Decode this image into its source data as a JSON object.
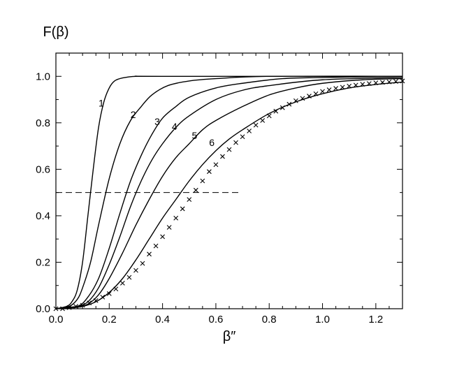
{
  "chart_data": {
    "type": "line",
    "title": "",
    "xlabel": "β″",
    "ylabel": "F(β)",
    "xlim": [
      0.0,
      1.3
    ],
    "ylim": [
      0.0,
      1.1
    ],
    "xticks": [
      "0.0",
      "0.2",
      "0.4",
      "0.6",
      "0.8",
      "1.0",
      "1.2"
    ],
    "yticks": [
      "0.0",
      "0.2",
      "0.4",
      "0.6",
      "0.8",
      "1.0"
    ],
    "grid": false,
    "series": [
      {
        "name": "1",
        "label_at": [
          0.17,
          0.87
        ],
        "x": [
          0.0,
          0.04,
          0.06,
          0.08,
          0.1,
          0.12,
          0.14,
          0.16,
          0.18,
          0.2,
          0.22,
          0.25,
          0.3,
          0.4,
          1.3
        ],
        "y": [
          0.0,
          0.01,
          0.03,
          0.08,
          0.2,
          0.4,
          0.6,
          0.78,
          0.89,
          0.95,
          0.98,
          0.993,
          1.0,
          1.0,
          1.0
        ]
      },
      {
        "name": "2",
        "label_at": [
          0.29,
          0.82
        ],
        "x": [
          0.0,
          0.05,
          0.08,
          0.1,
          0.13,
          0.16,
          0.2,
          0.24,
          0.28,
          0.32,
          0.36,
          0.42,
          0.5,
          0.6,
          0.8,
          1.3
        ],
        "y": [
          0.0,
          0.01,
          0.04,
          0.09,
          0.2,
          0.36,
          0.56,
          0.71,
          0.81,
          0.87,
          0.92,
          0.96,
          0.98,
          0.99,
          1.0,
          1.0
        ]
      },
      {
        "name": "3",
        "label_at": [
          0.38,
          0.79
        ],
        "x": [
          0.0,
          0.08,
          0.12,
          0.16,
          0.2,
          0.24,
          0.28,
          0.32,
          0.36,
          0.4,
          0.45,
          0.5,
          0.6,
          0.7,
          0.85,
          1.0,
          1.3
        ],
        "y": [
          0.0,
          0.01,
          0.05,
          0.13,
          0.26,
          0.41,
          0.55,
          0.66,
          0.75,
          0.82,
          0.87,
          0.91,
          0.95,
          0.97,
          0.99,
          0.995,
          1.0
        ]
      },
      {
        "name": "4",
        "label_at": [
          0.445,
          0.77
        ],
        "x": [
          0.0,
          0.08,
          0.12,
          0.16,
          0.2,
          0.24,
          0.28,
          0.32,
          0.36,
          0.4,
          0.45,
          0.5,
          0.6,
          0.7,
          0.8,
          1.0,
          1.3
        ],
        "y": [
          0.0,
          0.01,
          0.03,
          0.09,
          0.19,
          0.31,
          0.44,
          0.55,
          0.64,
          0.71,
          0.78,
          0.83,
          0.9,
          0.94,
          0.96,
          0.985,
          0.995
        ]
      },
      {
        "name": "5",
        "label_at": [
          0.52,
          0.73
        ],
        "x": [
          0.0,
          0.08,
          0.12,
          0.16,
          0.2,
          0.25,
          0.3,
          0.35,
          0.4,
          0.45,
          0.5,
          0.55,
          0.6,
          0.7,
          0.8,
          0.9,
          1.0,
          1.15,
          1.3
        ],
        "y": [
          0.0,
          0.01,
          0.02,
          0.06,
          0.13,
          0.24,
          0.36,
          0.47,
          0.57,
          0.65,
          0.71,
          0.77,
          0.81,
          0.87,
          0.92,
          0.95,
          0.97,
          0.985,
          0.99
        ]
      },
      {
        "name": "6",
        "label_at": [
          0.585,
          0.7
        ],
        "x": [
          0.0,
          0.05,
          0.1,
          0.15,
          0.2,
          0.25,
          0.3,
          0.35,
          0.4,
          0.45,
          0.5,
          0.55,
          0.6,
          0.65,
          0.7,
          0.8,
          0.9,
          1.0,
          1.1,
          1.2,
          1.3
        ],
        "y": [
          0.0,
          0.003,
          0.01,
          0.03,
          0.07,
          0.13,
          0.21,
          0.3,
          0.39,
          0.47,
          0.55,
          0.62,
          0.68,
          0.73,
          0.77,
          0.84,
          0.89,
          0.925,
          0.95,
          0.965,
          0.975
        ]
      }
    ],
    "markers": {
      "shape": "x",
      "x": [
        0.0,
        0.025,
        0.05,
        0.075,
        0.1,
        0.125,
        0.15,
        0.175,
        0.2,
        0.225,
        0.25,
        0.275,
        0.3,
        0.325,
        0.35,
        0.375,
        0.4,
        0.425,
        0.45,
        0.475,
        0.5,
        0.525,
        0.55,
        0.575,
        0.6,
        0.625,
        0.65,
        0.675,
        0.7,
        0.725,
        0.75,
        0.775,
        0.8,
        0.825,
        0.85,
        0.875,
        0.9,
        0.925,
        0.95,
        0.975,
        1.0,
        1.025,
        1.05,
        1.075,
        1.1,
        1.125,
        1.15,
        1.175,
        1.2,
        1.225,
        1.25,
        1.275,
        1.3
      ],
      "y": [
        0.0,
        0.0,
        0.005,
        0.01,
        0.015,
        0.025,
        0.035,
        0.05,
        0.065,
        0.085,
        0.11,
        0.135,
        0.165,
        0.195,
        0.235,
        0.27,
        0.31,
        0.35,
        0.39,
        0.43,
        0.47,
        0.51,
        0.55,
        0.59,
        0.62,
        0.655,
        0.685,
        0.715,
        0.74,
        0.765,
        0.79,
        0.81,
        0.83,
        0.85,
        0.865,
        0.88,
        0.895,
        0.905,
        0.915,
        0.925,
        0.935,
        0.942,
        0.948,
        0.953,
        0.958,
        0.962,
        0.966,
        0.969,
        0.972,
        0.974,
        0.976,
        0.978,
        0.98
      ]
    },
    "reference_line": {
      "style": "dashed",
      "y": 0.5,
      "x_range": [
        0.0,
        0.69
      ]
    }
  }
}
